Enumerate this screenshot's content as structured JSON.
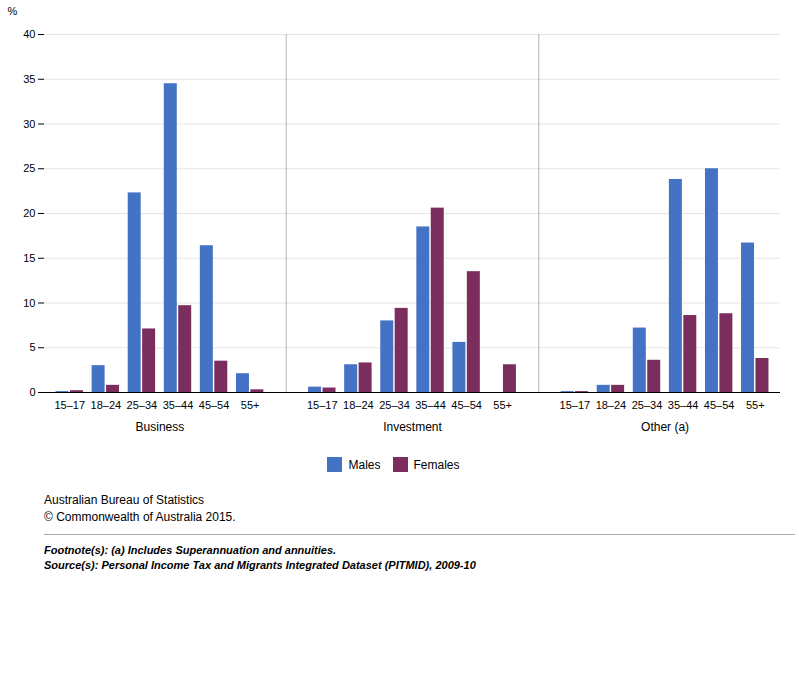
{
  "chart_data": {
    "type": "bar",
    "categories": [
      "15–17",
      "18–24",
      "25–34",
      "35–44",
      "45–54",
      "55+",
      "15–17",
      "18–24",
      "25–34",
      "35–44",
      "45–54",
      "55+",
      "15–17",
      "18–24",
      "25–34",
      "35–44",
      "45–54",
      "55+"
    ],
    "groups": [
      "Business",
      "Investment",
      "Other (a)"
    ],
    "series": [
      {
        "name": "Males",
        "color": "#4472C4",
        "values": [
          0.1,
          3.0,
          22.3,
          34.5,
          16.4,
          2.1,
          0.6,
          3.1,
          8.0,
          18.5,
          5.6,
          0.0,
          0.1,
          0.8,
          7.2,
          23.8,
          25.0,
          16.7
        ]
      },
      {
        "name": "Females",
        "color": "#7B2D5E",
        "values": [
          0.2,
          0.8,
          7.1,
          9.7,
          3.5,
          0.3,
          0.5,
          3.3,
          9.4,
          20.6,
          13.5,
          3.1,
          0.1,
          0.8,
          3.6,
          8.6,
          8.8,
          3.8
        ]
      }
    ],
    "ylim": [
      0,
      40
    ],
    "yticks": [
      0,
      5,
      10,
      15,
      20,
      25,
      30,
      35,
      40
    ],
    "ylabel": "%",
    "grid": true,
    "legend": "bottom",
    "credits": [
      "Australian Bureau of Statistics",
      "© Commonwealth of Australia 2015."
    ],
    "footnotes": [
      "Footnote(s): (a) Includes Superannuation and annuities.",
      "Source(s): Personal Income Tax and Migrants Integrated Dataset (PITMID), 2009-10"
    ]
  }
}
